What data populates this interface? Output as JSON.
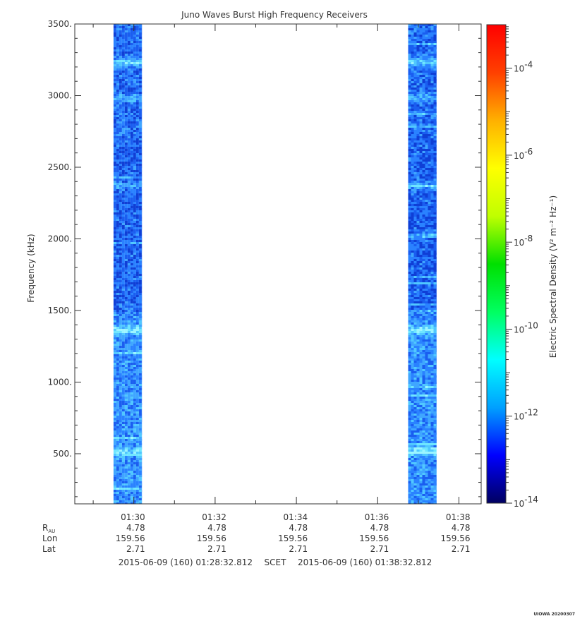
{
  "chart_data": {
    "type": "heatmap",
    "title": "Juno Waves Burst High Frequency Receivers",
    "ylabel": "Frequency (kHz)",
    "ylim": [
      150,
      3500
    ],
    "y_ticks": [
      500,
      1000,
      1500,
      2000,
      2500,
      3000,
      3500
    ],
    "y_tick_labels": [
      "500.",
      "1000.",
      "1500.",
      "2000.",
      "2500.",
      "3000.",
      "3500."
    ],
    "x_time_range": [
      "01:28:32.812",
      "01:38:32.812"
    ],
    "x_ticks": [
      "01:30",
      "01:32",
      "01:34",
      "01:36",
      "01:38"
    ],
    "x_minor_ticks": [
      "01:29",
      "01:31",
      "01:33",
      "01:35",
      "01:37"
    ],
    "data_segments": [
      {
        "start": "01:29:30",
        "end": "01:30:12"
      },
      {
        "start": "01:36:45",
        "end": "01:37:27"
      }
    ],
    "spectral_features_khz": [
      {
        "freq": 520,
        "strength": 0.75
      },
      {
        "freq": 1370,
        "strength": 0.9
      },
      {
        "freq": 2380,
        "strength": 0.45
      },
      {
        "freq": 2990,
        "strength": 0.5
      },
      {
        "freq": 3240,
        "strength": 0.85
      }
    ],
    "colorbar": {
      "label": "Electric Spectral Density (V² m⁻² Hz⁻¹)",
      "log_range": [
        -14,
        -3
      ],
      "ticks": [
        -14,
        -12,
        -10,
        -8,
        -6,
        -4
      ],
      "colors": [
        "#000060",
        "#0000ff",
        "#00a0ff",
        "#00ffff",
        "#00ff60",
        "#00e000",
        "#c0ff00",
        "#ffff00",
        "#ffb000",
        "#ff4000",
        "#ff0000"
      ]
    }
  },
  "ephemeris": {
    "rows": [
      {
        "label": "R",
        "sub": "AU",
        "values": [
          "4.78",
          "4.78",
          "4.78",
          "4.78",
          "4.78"
        ]
      },
      {
        "label": "Lon",
        "values": [
          "159.56",
          "159.56",
          "159.56",
          "159.56",
          "159.56"
        ]
      },
      {
        "label": "Lat",
        "values": [
          "2.71",
          "2.71",
          "2.71",
          "2.71",
          "2.71"
        ]
      }
    ]
  },
  "time_span": {
    "start": "2015-06-09 (160) 01:28:32.812",
    "middle": "SCET",
    "end": "2015-06-09 (160) 01:38:32.812"
  },
  "credit": "UIOWA 20200307"
}
